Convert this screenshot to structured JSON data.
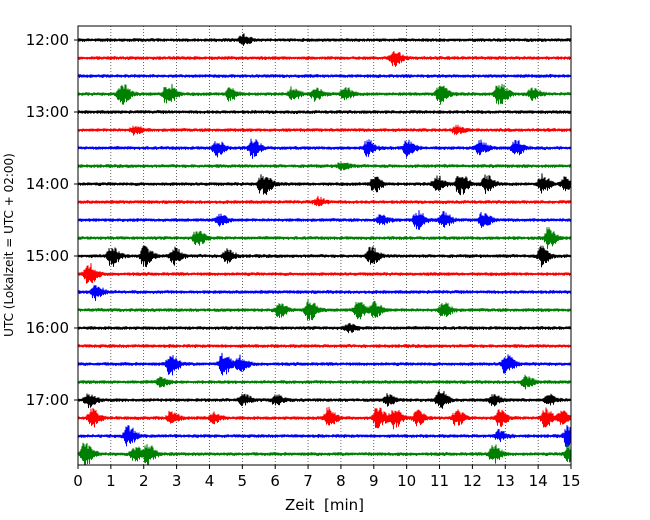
{
  "chart_data": {
    "type": "line",
    "title": "",
    "xlabel": "Zeit  [min]",
    "ylabel": "UTC (Lokalzeit = UTC + 02:00)",
    "xlim": [
      0,
      15
    ],
    "x_ticks": [
      "0",
      "1",
      "2",
      "3",
      "4",
      "5",
      "6",
      "7",
      "8",
      "9",
      "10",
      "11",
      "12",
      "13",
      "14",
      "15"
    ],
    "y_tick_labels": [
      "12:00",
      "13:00",
      "14:00",
      "15:00",
      "16:00",
      "17:00"
    ],
    "grid": "vertical-dotted",
    "legend": "none",
    "trace_colors": [
      "#000000",
      "#ff0000",
      "#0000ff",
      "#008000"
    ],
    "traces": [
      {
        "start": "12:00",
        "events": [
          [
            5.0,
            0.8
          ]
        ]
      },
      {
        "start": "12:15",
        "events": [
          [
            9.6,
            1.2
          ]
        ]
      },
      {
        "start": "12:30",
        "events": []
      },
      {
        "start": "12:45",
        "events": [
          [
            1.3,
            1.8
          ],
          [
            2.7,
            2.0
          ],
          [
            4.6,
            1.0
          ],
          [
            6.5,
            1.0
          ],
          [
            7.2,
            1.0
          ],
          [
            8.1,
            1.0
          ],
          [
            11.0,
            1.6
          ],
          [
            12.8,
            2.0
          ],
          [
            13.8,
            0.9
          ]
        ]
      },
      {
        "start": "13:00",
        "events": []
      },
      {
        "start": "13:15",
        "events": [
          [
            1.7,
            0.6
          ],
          [
            11.5,
            0.6
          ]
        ]
      },
      {
        "start": "13:30",
        "events": [
          [
            4.2,
            1.2
          ],
          [
            5.3,
            1.4
          ],
          [
            8.8,
            1.2
          ],
          [
            10.0,
            1.4
          ],
          [
            12.2,
            1.1
          ],
          [
            13.3,
            1.2
          ]
        ]
      },
      {
        "start": "13:45",
        "events": [
          [
            8.0,
            0.6
          ]
        ]
      },
      {
        "start": "14:00",
        "events": [
          [
            5.6,
            2.6
          ],
          [
            9.0,
            1.3
          ],
          [
            10.9,
            1.3
          ],
          [
            11.6,
            2.2
          ],
          [
            12.4,
            1.4
          ],
          [
            14.1,
            1.4
          ],
          [
            14.8,
            1.0
          ]
        ]
      },
      {
        "start": "14:15",
        "events": [
          [
            7.3,
            0.6
          ]
        ]
      },
      {
        "start": "14:30",
        "events": [
          [
            4.3,
            0.8
          ],
          [
            9.2,
            0.7
          ],
          [
            10.3,
            1.6
          ],
          [
            11.1,
            1.2
          ],
          [
            12.3,
            1.2
          ]
        ]
      },
      {
        "start": "14:45",
        "events": [
          [
            3.6,
            1.2
          ],
          [
            14.3,
            1.6
          ]
        ]
      },
      {
        "start": "15:00",
        "events": [
          [
            1.0,
            1.6
          ],
          [
            2.0,
            1.6
          ],
          [
            2.9,
            1.3
          ],
          [
            4.5,
            1.0
          ],
          [
            8.9,
            1.4
          ],
          [
            14.1,
            1.6
          ]
        ]
      },
      {
        "start": "15:15",
        "events": [
          [
            0.3,
            1.8
          ]
        ]
      },
      {
        "start": "15:30",
        "events": [
          [
            0.5,
            1.2
          ]
        ]
      },
      {
        "start": "15:45",
        "events": [
          [
            6.1,
            1.1
          ],
          [
            7.0,
            1.8
          ],
          [
            8.5,
            1.4
          ],
          [
            9.0,
            1.2
          ],
          [
            11.1,
            1.2
          ]
        ]
      },
      {
        "start": "16:00",
        "events": [
          [
            8.2,
            0.6
          ]
        ]
      },
      {
        "start": "16:15",
        "events": []
      },
      {
        "start": "16:30",
        "events": [
          [
            2.8,
            1.8
          ],
          [
            4.4,
            1.8
          ],
          [
            4.9,
            1.2
          ],
          [
            13.0,
            1.6
          ]
        ]
      },
      {
        "start": "16:45",
        "events": [
          [
            2.5,
            0.7
          ],
          [
            13.6,
            0.9
          ]
        ]
      },
      {
        "start": "17:00",
        "events": [
          [
            0.3,
            1.0
          ],
          [
            5.0,
            0.8
          ],
          [
            6.0,
            0.8
          ],
          [
            9.4,
            0.8
          ],
          [
            11.0,
            1.6
          ],
          [
            12.6,
            0.8
          ],
          [
            14.3,
            0.8
          ]
        ]
      },
      {
        "start": "17:15",
        "events": [
          [
            0.4,
            1.4
          ],
          [
            2.8,
            1.0
          ],
          [
            4.1,
            0.8
          ],
          [
            7.6,
            1.6
          ],
          [
            9.1,
            2.0
          ],
          [
            9.6,
            1.6
          ],
          [
            10.3,
            1.2
          ],
          [
            11.5,
            1.2
          ],
          [
            12.8,
            1.2
          ],
          [
            14.2,
            1.6
          ],
          [
            14.7,
            1.0
          ]
        ]
      },
      {
        "start": "17:30",
        "events": [
          [
            1.5,
            1.6
          ],
          [
            12.8,
            0.8
          ],
          [
            14.9,
            2.2
          ]
        ]
      },
      {
        "start": "17:45",
        "events": [
          [
            0.2,
            2.0
          ],
          [
            1.7,
            1.2
          ],
          [
            2.1,
            1.6
          ],
          [
            12.6,
            1.6
          ],
          [
            14.9,
            1.4
          ]
        ]
      }
    ]
  }
}
